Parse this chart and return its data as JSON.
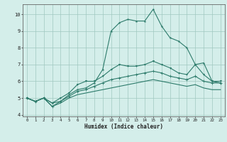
{
  "title": "",
  "xlabel": "Humidex (Indice chaleur)",
  "x": [
    0,
    1,
    2,
    3,
    4,
    5,
    6,
    7,
    8,
    9,
    10,
    11,
    12,
    13,
    14,
    15,
    16,
    17,
    18,
    19,
    20,
    21,
    22,
    23
  ],
  "line1": [
    5.0,
    4.8,
    5.0,
    4.7,
    4.8,
    5.2,
    5.5,
    5.6,
    5.9,
    6.7,
    9.0,
    9.5,
    9.7,
    9.6,
    9.6,
    10.3,
    9.3,
    8.6,
    8.4,
    8.0,
    7.0,
    7.1,
    6.0,
    5.9
  ],
  "line2": [
    5.0,
    4.8,
    5.0,
    4.7,
    5.0,
    5.3,
    5.8,
    6.0,
    6.0,
    6.3,
    6.7,
    7.0,
    6.9,
    6.9,
    7.0,
    7.2,
    7.0,
    6.8,
    6.5,
    6.4,
    7.0,
    6.4,
    6.0,
    6.0
  ],
  "line3": [
    5.0,
    4.8,
    5.0,
    4.5,
    4.8,
    5.1,
    5.4,
    5.5,
    5.7,
    5.9,
    6.1,
    6.2,
    6.3,
    6.4,
    6.5,
    6.6,
    6.5,
    6.3,
    6.2,
    6.1,
    6.3,
    6.0,
    5.9,
    5.9
  ],
  "line4": [
    5.0,
    4.8,
    5.0,
    4.5,
    4.7,
    5.0,
    5.2,
    5.3,
    5.4,
    5.5,
    5.6,
    5.7,
    5.8,
    5.9,
    6.0,
    6.1,
    6.0,
    5.9,
    5.8,
    5.7,
    5.8,
    5.6,
    5.5,
    5.5
  ],
  "color": "#2d7b6b",
  "bg_color": "#d4eeea",
  "grid_color": "#a0c8c0",
  "ylim": [
    3.9,
    10.6
  ],
  "xlim": [
    -0.5,
    23.5
  ],
  "yticks": [
    4,
    5,
    6,
    7,
    8,
    9,
    10
  ],
  "xticks": [
    0,
    1,
    2,
    3,
    4,
    5,
    6,
    7,
    8,
    9,
    10,
    11,
    12,
    13,
    14,
    15,
    16,
    17,
    18,
    19,
    20,
    21,
    22,
    23
  ]
}
